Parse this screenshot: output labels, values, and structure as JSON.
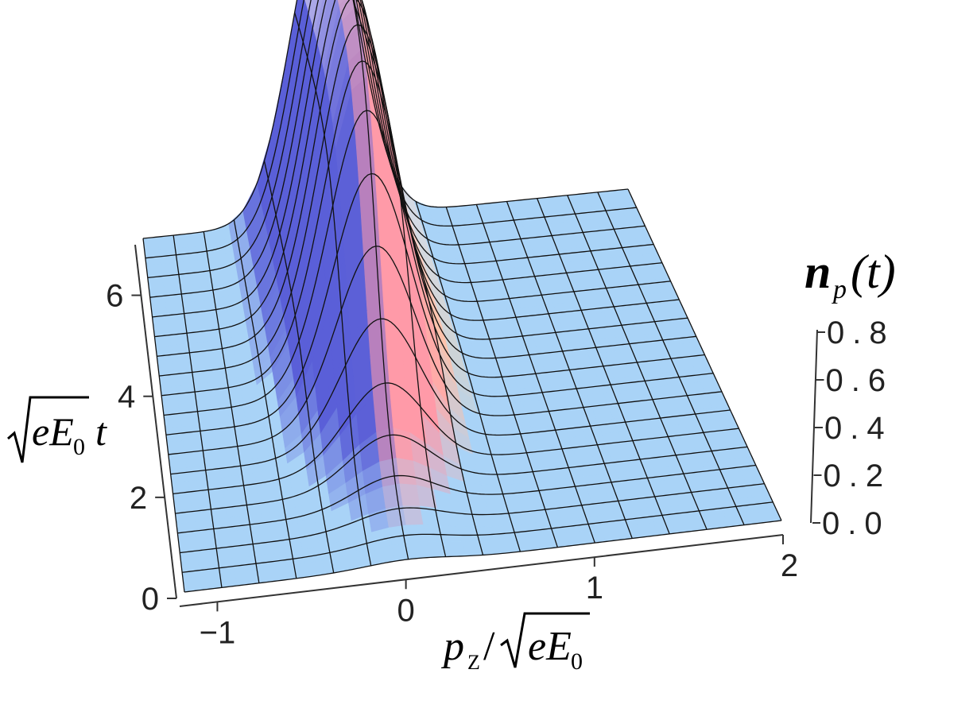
{
  "chart_data": {
    "type": "surface3d",
    "title": "",
    "xlabel": {
      "p": "p",
      "sub": "Z",
      "slash": "/",
      "e": "eE",
      "zero": "0"
    },
    "ylabel": {
      "e": "eE",
      "zero": "0",
      "t": "t"
    },
    "zlabel": {
      "n": "n",
      "sub": "p",
      "rest": "(t)"
    },
    "x_ticks": [
      "−1",
      "0",
      "1",
      "2"
    ],
    "y_ticks": [
      "0",
      "2",
      "4",
      "6"
    ],
    "z_ticks": [
      "0.0",
      "0.2",
      "0.4",
      "0.6",
      "0.8"
    ],
    "xlim": [
      -1.2,
      2.0
    ],
    "ylim": [
      0,
      7
    ],
    "zlim": [
      0,
      0.9
    ],
    "peak_center_p": 0.0,
    "peak_width_p": 0.32,
    "max_value": 1.0,
    "rise_center_t": 2.8,
    "rise_width_t": 0.65,
    "grid": true,
    "colors": {
      "floor": "#a9d3f7",
      "blue": "#5a5fd8",
      "pink": "#ff9aa8",
      "peach": "#ffd3a8",
      "grid": "#111111"
    }
  }
}
